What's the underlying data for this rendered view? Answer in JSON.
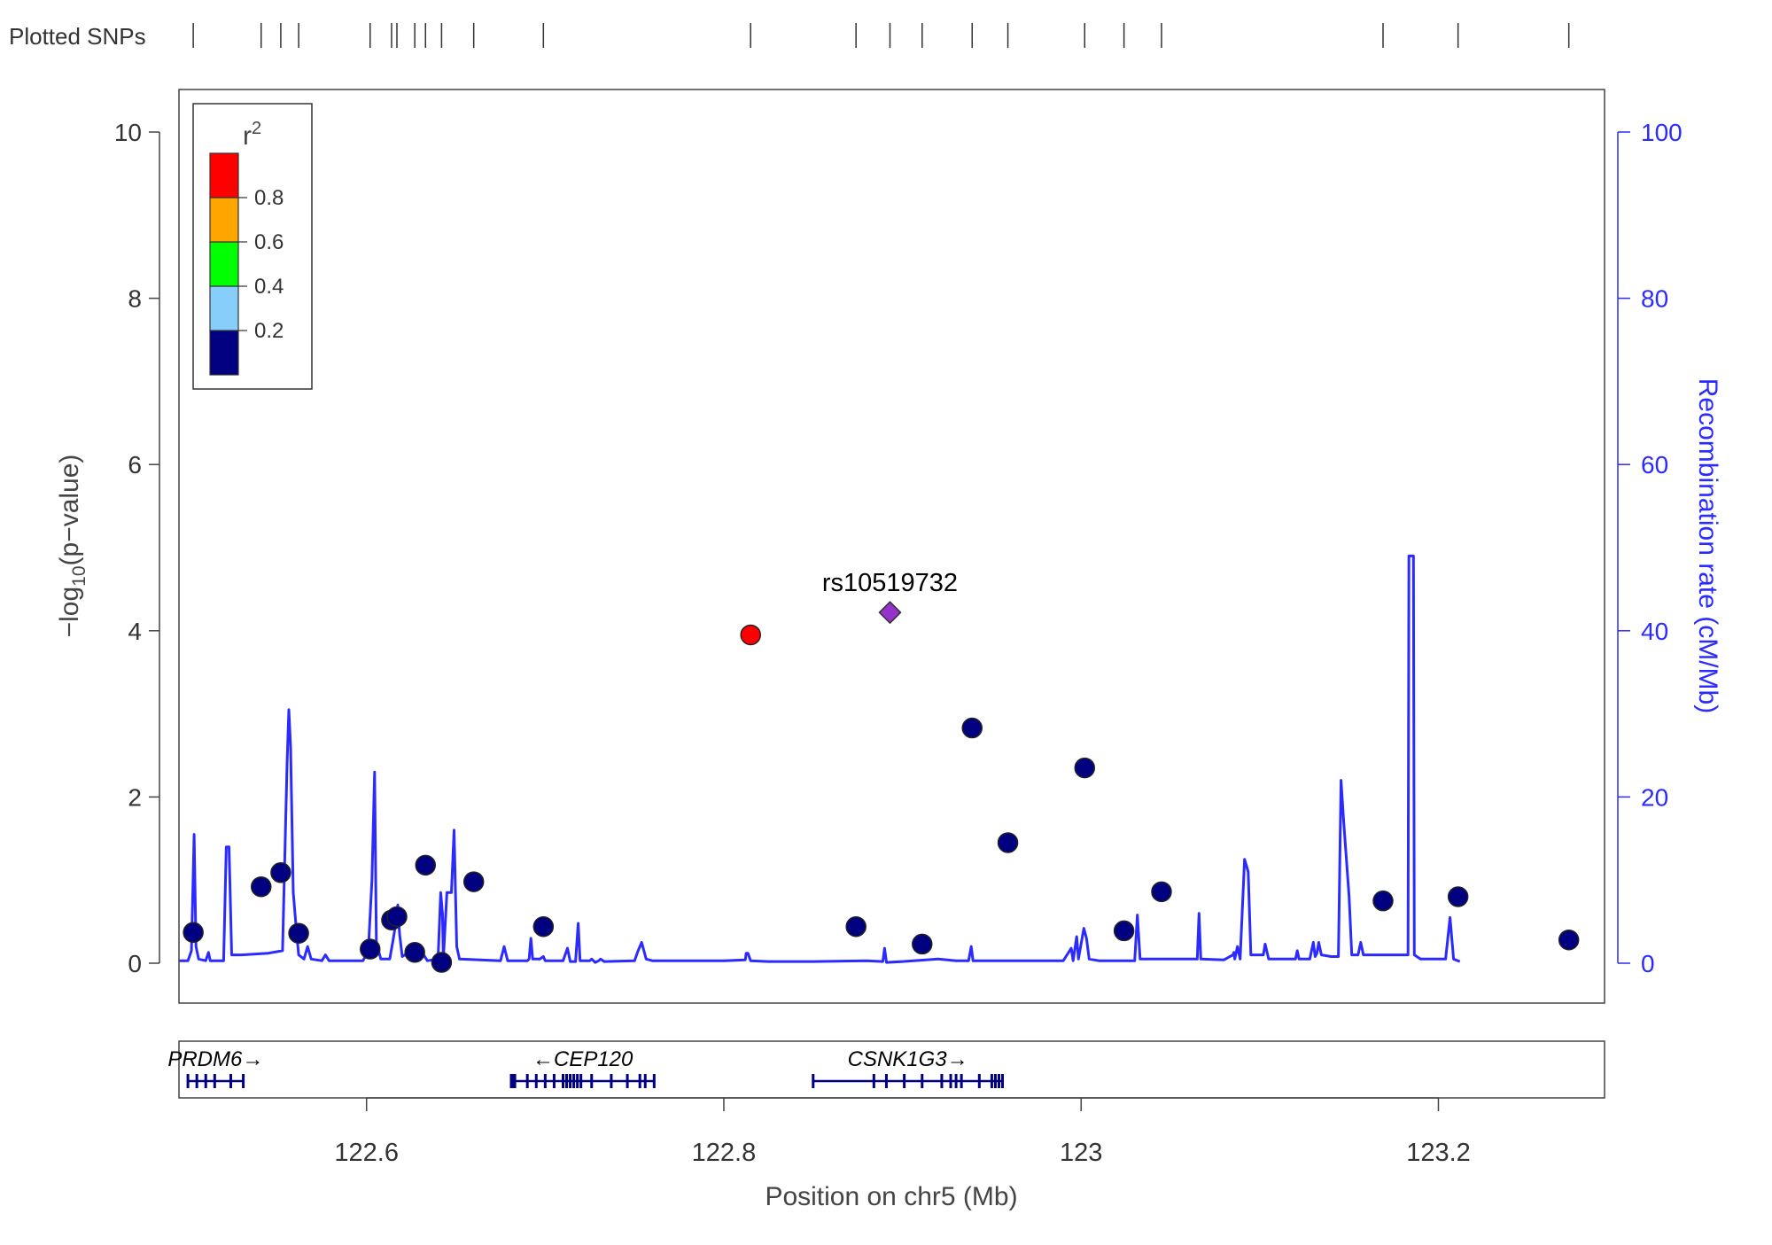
{
  "chart_data": {
    "type": "scatter",
    "title": "",
    "rug_label": "Plotted SNPs",
    "xlabel": "Position on chr5 (Mb)",
    "ylabel": "−log",
    "ylabel_sub": "10",
    "ylabel_suffix": "(p−value)",
    "y2label": "Recombination rate (cM/Mb)",
    "xlim": [
      122.495,
      123.293
    ],
    "ylim": [
      0,
      10
    ],
    "y2lim": [
      0,
      100
    ],
    "x_ticks": [
      {
        "value": 122.6,
        "label": "122.6"
      },
      {
        "value": 122.8,
        "label": "122.8"
      },
      {
        "value": 123.0,
        "label": "123"
      },
      {
        "value": 123.2,
        "label": "123.2"
      }
    ],
    "y_ticks": [
      {
        "value": 0,
        "label": "0"
      },
      {
        "value": 2,
        "label": "2"
      },
      {
        "value": 4,
        "label": "4"
      },
      {
        "value": 6,
        "label": "6"
      },
      {
        "value": 8,
        "label": "8"
      },
      {
        "value": 10,
        "label": "10"
      }
    ],
    "y2_ticks": [
      {
        "value": 0,
        "label": "0"
      },
      {
        "value": 20,
        "label": "20"
      },
      {
        "value": 40,
        "label": "40"
      },
      {
        "value": 60,
        "label": "60"
      },
      {
        "value": 80,
        "label": "80"
      },
      {
        "value": 100,
        "label": "100"
      }
    ],
    "legend": {
      "title": "r",
      "title_sup": "2",
      "placement": "top-left",
      "bins": [
        {
          "color": "#000080"
        },
        {
          "color": "#87CEFA"
        },
        {
          "color": "#00FF00"
        },
        {
          "color": "#FFA500"
        },
        {
          "color": "#FF0000"
        }
      ],
      "tick_labels": [
        "0.2",
        "0.4",
        "0.6",
        "0.8"
      ]
    },
    "colors": {
      "recombination": "#2b2bff",
      "low_ld": "#000080",
      "high_ld": "#FF0000",
      "index_snp": "#9632CC",
      "gene": "#000080"
    },
    "index_snp": {
      "name": "rs10519732",
      "x": 122.893,
      "y": 4.22
    },
    "snps": [
      {
        "x": 122.503,
        "y": 0.37,
        "r2": 0.05
      },
      {
        "x": 122.541,
        "y": 0.92,
        "r2": 0.05
      },
      {
        "x": 122.552,
        "y": 1.09,
        "r2": 0.05
      },
      {
        "x": 122.562,
        "y": 0.36,
        "r2": 0.05
      },
      {
        "x": 122.602,
        "y": 0.17,
        "r2": 0.05
      },
      {
        "x": 122.614,
        "y": 0.52,
        "r2": 0.05
      },
      {
        "x": 122.617,
        "y": 0.56,
        "r2": 0.05
      },
      {
        "x": 122.627,
        "y": 0.13,
        "r2": 0.05
      },
      {
        "x": 122.633,
        "y": 1.18,
        "r2": 0.05
      },
      {
        "x": 122.642,
        "y": 0.01,
        "r2": 0.05
      },
      {
        "x": 122.66,
        "y": 0.98,
        "r2": 0.05
      },
      {
        "x": 122.699,
        "y": 0.44,
        "r2": 0.05
      },
      {
        "x": 122.815,
        "y": 3.95,
        "r2": 0.9
      },
      {
        "x": 122.874,
        "y": 0.44,
        "r2": 0.05
      },
      {
        "x": 122.911,
        "y": 0.23,
        "r2": 0.05
      },
      {
        "x": 122.939,
        "y": 2.83,
        "r2": 0.05
      },
      {
        "x": 122.959,
        "y": 1.45,
        "r2": 0.05
      },
      {
        "x": 123.002,
        "y": 2.35,
        "r2": 0.05
      },
      {
        "x": 123.024,
        "y": 0.39,
        "r2": 0.05
      },
      {
        "x": 123.045,
        "y": 0.86,
        "r2": 0.05
      },
      {
        "x": 123.169,
        "y": 0.75,
        "r2": 0.05
      },
      {
        "x": 123.211,
        "y": 0.8,
        "r2": 0.05
      },
      {
        "x": 123.273,
        "y": 0.28,
        "r2": 0.05
      }
    ],
    "recombination": [
      [
        122.495,
        0.3
      ],
      [
        122.5,
        0.3
      ],
      [
        122.502,
        1.5
      ],
      [
        122.5035,
        15.5
      ],
      [
        122.5045,
        2.0
      ],
      [
        122.506,
        0.5
      ],
      [
        122.51,
        0.3
      ],
      [
        122.5115,
        1.3
      ],
      [
        122.5125,
        0.3
      ],
      [
        122.52,
        0.3
      ],
      [
        122.5215,
        14.0
      ],
      [
        122.523,
        14.0
      ],
      [
        122.5245,
        1.0
      ],
      [
        122.53,
        1.0
      ],
      [
        122.545,
        1.2
      ],
      [
        122.553,
        1.5
      ],
      [
        122.5555,
        24.0
      ],
      [
        122.5565,
        30.5
      ],
      [
        122.5575,
        26.0
      ],
      [
        122.559,
        8.5
      ],
      [
        122.5605,
        4.5
      ],
      [
        122.562,
        1.0
      ],
      [
        122.565,
        0.5
      ],
      [
        122.567,
        2.0
      ],
      [
        122.569,
        0.5
      ],
      [
        122.575,
        0.3
      ],
      [
        122.577,
        1.0
      ],
      [
        122.579,
        0.3
      ],
      [
        122.598,
        0.3
      ],
      [
        122.601,
        1.5
      ],
      [
        122.603,
        10.0
      ],
      [
        122.6045,
        23.0
      ],
      [
        122.6055,
        2.5
      ],
      [
        122.608,
        0.5
      ],
      [
        122.613,
        0.5
      ],
      [
        122.615,
        3.0
      ],
      [
        122.6165,
        5.0
      ],
      [
        122.6175,
        7.0
      ],
      [
        122.6185,
        3.5
      ],
      [
        122.62,
        0.8
      ],
      [
        122.625,
        1.5
      ],
      [
        122.628,
        0.5
      ],
      [
        122.632,
        1.0
      ],
      [
        122.634,
        0.3
      ],
      [
        122.64,
        0.5
      ],
      [
        122.6415,
        8.5
      ],
      [
        122.6425,
        6.0
      ],
      [
        122.643,
        0.5
      ],
      [
        122.645,
        8.5
      ],
      [
        122.6475,
        8.5
      ],
      [
        122.649,
        16.0
      ],
      [
        122.6505,
        2.0
      ],
      [
        122.652,
        0.5
      ],
      [
        122.675,
        0.3
      ],
      [
        122.677,
        2.0
      ],
      [
        122.679,
        0.3
      ],
      [
        122.69,
        0.3
      ],
      [
        122.691,
        0.5
      ],
      [
        122.692,
        3.0
      ],
      [
        122.693,
        0.5
      ],
      [
        122.697,
        0.5
      ],
      [
        122.699,
        0.8
      ],
      [
        122.7,
        0.3
      ],
      [
        122.71,
        0.3
      ],
      [
        122.7125,
        1.8
      ],
      [
        122.714,
        0.2
      ],
      [
        122.717,
        0.2
      ],
      [
        122.7185,
        4.8
      ],
      [
        122.7195,
        0.3
      ],
      [
        122.725,
        0.3
      ],
      [
        122.726,
        0.5
      ],
      [
        122.728,
        0.1
      ],
      [
        122.73,
        0.3
      ],
      [
        122.731,
        0.5
      ],
      [
        122.733,
        0.2
      ],
      [
        122.75,
        0.3
      ],
      [
        122.752,
        1.5
      ],
      [
        122.754,
        2.5
      ],
      [
        122.7565,
        0.5
      ],
      [
        122.76,
        0.3
      ],
      [
        122.8,
        0.3
      ],
      [
        122.812,
        0.4
      ],
      [
        122.8125,
        1.2
      ],
      [
        122.8135,
        1.2
      ],
      [
        122.815,
        0.3
      ],
      [
        122.825,
        0.2
      ],
      [
        122.85,
        0.2
      ],
      [
        122.88,
        0.3
      ],
      [
        122.889,
        0.2
      ],
      [
        122.89,
        1.8
      ],
      [
        122.891,
        0.1
      ],
      [
        122.9,
        0.2
      ],
      [
        122.92,
        0.5
      ],
      [
        122.93,
        0.3
      ],
      [
        122.937,
        0.3
      ],
      [
        122.9385,
        2.0
      ],
      [
        122.9395,
        0.3
      ],
      [
        122.99,
        0.3
      ],
      [
        122.9945,
        1.8
      ],
      [
        122.9955,
        0.3
      ],
      [
        122.9975,
        3.2
      ],
      [
        122.9985,
        0.5
      ],
      [
        123.0015,
        4.2
      ],
      [
        123.003,
        3.0
      ],
      [
        123.0045,
        0.5
      ],
      [
        123.01,
        0.3
      ],
      [
        123.03,
        0.3
      ],
      [
        123.0315,
        5.8
      ],
      [
        123.033,
        0.5
      ],
      [
        123.065,
        0.5
      ],
      [
        123.066,
        6.0
      ],
      [
        123.067,
        0.5
      ],
      [
        123.08,
        0.4
      ],
      [
        123.085,
        1.0
      ],
      [
        123.0855,
        1.3
      ],
      [
        123.086,
        0.5
      ],
      [
        123.0875,
        2.0
      ],
      [
        123.089,
        0.5
      ],
      [
        123.0915,
        12.5
      ],
      [
        123.0935,
        11.0
      ],
      [
        123.095,
        1.0
      ],
      [
        123.102,
        1.0
      ],
      [
        123.103,
        2.3
      ],
      [
        123.105,
        0.5
      ],
      [
        123.12,
        0.5
      ],
      [
        123.121,
        1.5
      ],
      [
        123.122,
        0.5
      ],
      [
        123.128,
        0.5
      ],
      [
        123.13,
        2.5
      ],
      [
        123.131,
        0.8
      ],
      [
        123.132,
        1.2
      ],
      [
        123.133,
        2.5
      ],
      [
        123.1345,
        1.0
      ],
      [
        123.14,
        0.8
      ],
      [
        123.144,
        0.8
      ],
      [
        123.1455,
        22.0
      ],
      [
        123.147,
        17.0
      ],
      [
        123.15,
        8.0
      ],
      [
        123.1515,
        1.0
      ],
      [
        123.155,
        1.0
      ],
      [
        123.1565,
        2.5
      ],
      [
        123.158,
        1.0
      ],
      [
        123.175,
        1.0
      ],
      [
        123.183,
        1.0
      ],
      [
        123.1835,
        49.0
      ],
      [
        123.186,
        49.0
      ],
      [
        123.1865,
        1.0
      ],
      [
        123.19,
        0.5
      ],
      [
        123.2,
        0.5
      ],
      [
        123.204,
        0.5
      ],
      [
        123.2065,
        5.5
      ],
      [
        123.2085,
        0.5
      ],
      [
        123.212,
        0.2
      ]
    ],
    "genes": [
      {
        "name": "PRDM6",
        "label": "PRDM6→",
        "start": 122.5,
        "end": 122.531,
        "exons": [
          122.5,
          122.505,
          122.51,
          122.515,
          122.524,
          122.531
        ]
      },
      {
        "name": "CEP120",
        "label": "←CEP120",
        "start": 122.681,
        "end": 122.761,
        "exons": [
          122.681,
          122.682,
          122.683,
          122.69,
          122.695,
          122.7,
          122.705,
          122.71,
          122.712,
          122.714,
          122.716,
          122.718,
          122.72,
          122.726,
          122.737,
          122.746,
          122.753,
          122.756,
          122.761
        ]
      },
      {
        "name": "CSNK1G3",
        "label": "CSNK1G3→",
        "start": 122.85,
        "end": 122.956,
        "exons": [
          122.85,
          122.884,
          122.891,
          122.901,
          122.911,
          122.922,
          122.927,
          122.93,
          122.933,
          122.943,
          122.95,
          122.952,
          122.954,
          122.956
        ]
      }
    ]
  }
}
